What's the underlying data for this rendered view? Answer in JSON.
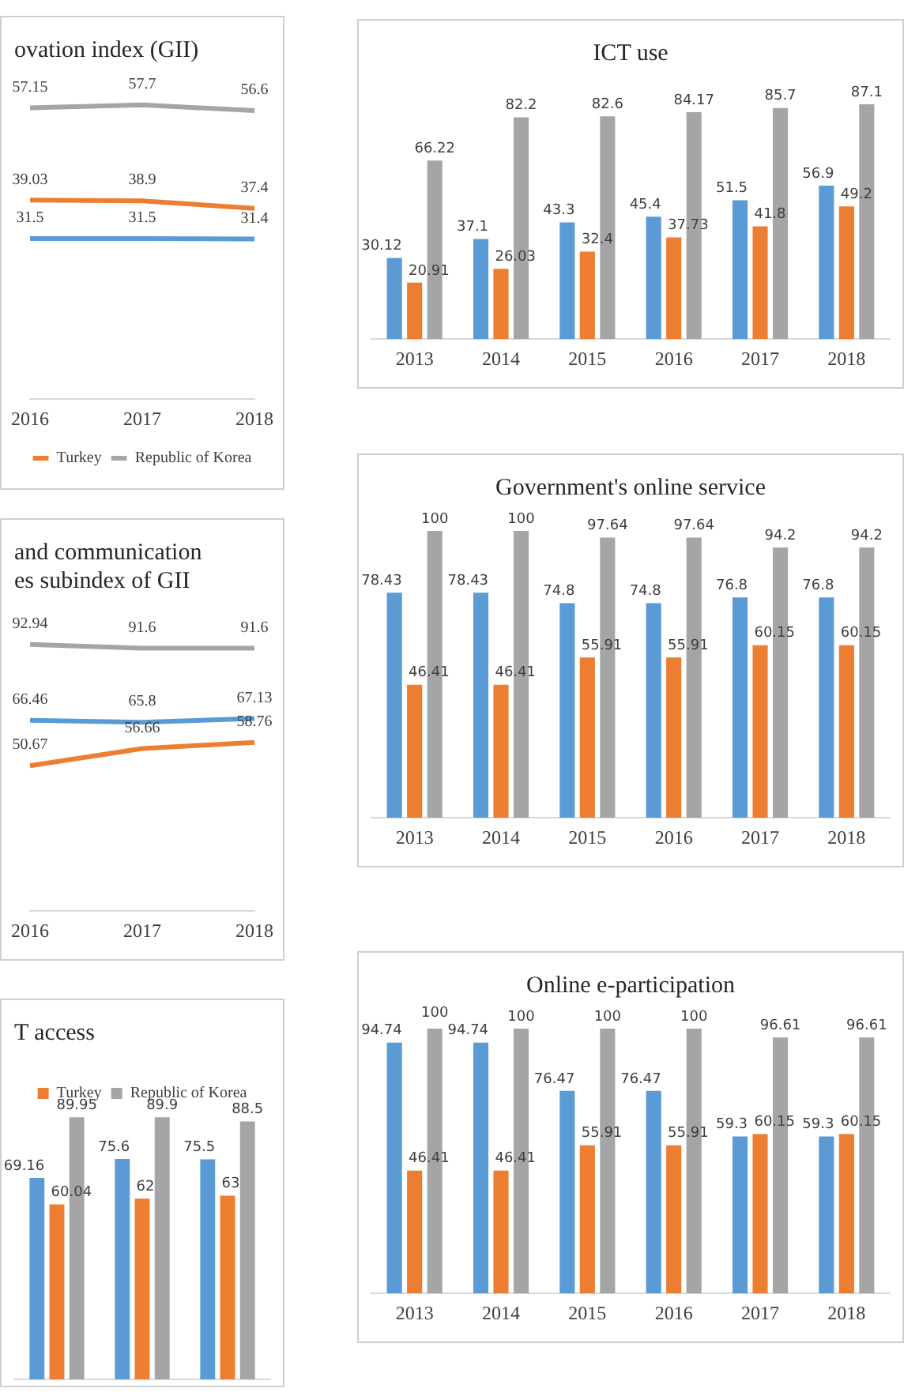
{
  "chart_data": [
    {
      "type": "line",
      "title": "ovation index (GII)",
      "categories": [
        "2016",
        "2017",
        "2018"
      ],
      "data_labels": true,
      "legend": "bottom",
      "grid": false,
      "tick_labels": "x",
      "marker": "none",
      "line_style": "solid",
      "series": [
        {
          "color": "#5b9bd5",
          "values": [
            31.5,
            31.5,
            31.4
          ]
        },
        {
          "name": "Turkey",
          "color": "#ed7d31",
          "values": [
            39.03,
            38.9,
            37.4
          ]
        },
        {
          "name": "Republic of Korea",
          "color": "#a5a5a5",
          "values": [
            57.15,
            57.7,
            56.6
          ]
        }
      ]
    },
    {
      "type": "line",
      "title": "and communication\nes subindex of GII",
      "categories": [
        "2016",
        "2017",
        "2018"
      ],
      "data_labels": true,
      "grid": false,
      "tick_labels": "x",
      "marker": "none",
      "line_style": "solid",
      "series": [
        {
          "color": "#5b9bd5",
          "values": [
            66.46,
            65.8,
            67.13
          ]
        },
        {
          "color": "#ed7d31",
          "values": [
            50.67,
            56.66,
            58.76
          ]
        },
        {
          "color": "#a5a5a5",
          "values": [
            92.94,
            91.6,
            91.6
          ]
        }
      ]
    },
    {
      "type": "bar",
      "title": "T access",
      "categories": [
        null,
        null,
        null
      ],
      "data_labels": true,
      "legend": "top",
      "grid": false,
      "tick_labels": false,
      "series": [
        {
          "color": "#5b9bd5",
          "values": [
            69.16,
            75.6,
            75.5
          ]
        },
        {
          "name": "Turkey",
          "color": "#ed7d31",
          "values": [
            60.04,
            62,
            63
          ]
        },
        {
          "name": "Republic of Korea",
          "color": "#a5a5a5",
          "values": [
            89.95,
            89.9,
            88.5
          ]
        }
      ]
    },
    {
      "type": "bar",
      "title": "ICT use",
      "categories": [
        "2013",
        "2014",
        "2015",
        "2016",
        "2017",
        "2018"
      ],
      "data_labels": true,
      "grid": false,
      "tick_labels": "x",
      "series": [
        {
          "color": "#5b9bd5",
          "values": [
            30.12,
            37.1,
            43.3,
            45.4,
            51.5,
            56.9
          ]
        },
        {
          "color": "#ed7d31",
          "values": [
            20.91,
            26.03,
            32.4,
            37.73,
            41.8,
            49.2
          ]
        },
        {
          "color": "#a5a5a5",
          "values": [
            66.22,
            82.2,
            82.6,
            84.17,
            85.7,
            87.1
          ]
        }
      ]
    },
    {
      "type": "bar",
      "title": "Government's online service",
      "categories": [
        "2013",
        "2014",
        "2015",
        "2016",
        "2017",
        "2018"
      ],
      "data_labels": true,
      "grid": false,
      "tick_labels": "x",
      "series": [
        {
          "color": "#5b9bd5",
          "values": [
            78.43,
            78.43,
            74.8,
            74.8,
            76.8,
            76.8
          ]
        },
        {
          "color": "#ed7d31",
          "values": [
            46.41,
            46.41,
            55.91,
            55.91,
            60.15,
            60.15
          ]
        },
        {
          "color": "#a5a5a5",
          "values": [
            100,
            100,
            97.64,
            97.64,
            94.2,
            94.2
          ]
        }
      ]
    },
    {
      "type": "bar",
      "title": "Online e-participation",
      "categories": [
        "2013",
        "2014",
        "2015",
        "2016",
        "2017",
        "2018"
      ],
      "data_labels": true,
      "grid": false,
      "tick_labels": "x",
      "series": [
        {
          "color": "#5b9bd5",
          "values": [
            94.74,
            94.74,
            76.47,
            76.47,
            59.3,
            59.3
          ]
        },
        {
          "color": "#ed7d31",
          "values": [
            46.41,
            46.41,
            55.91,
            55.91,
            60.15,
            60.15
          ]
        },
        {
          "color": "#a5a5a5",
          "values": [
            100,
            100,
            100,
            100,
            96.61,
            96.61
          ]
        }
      ]
    }
  ]
}
